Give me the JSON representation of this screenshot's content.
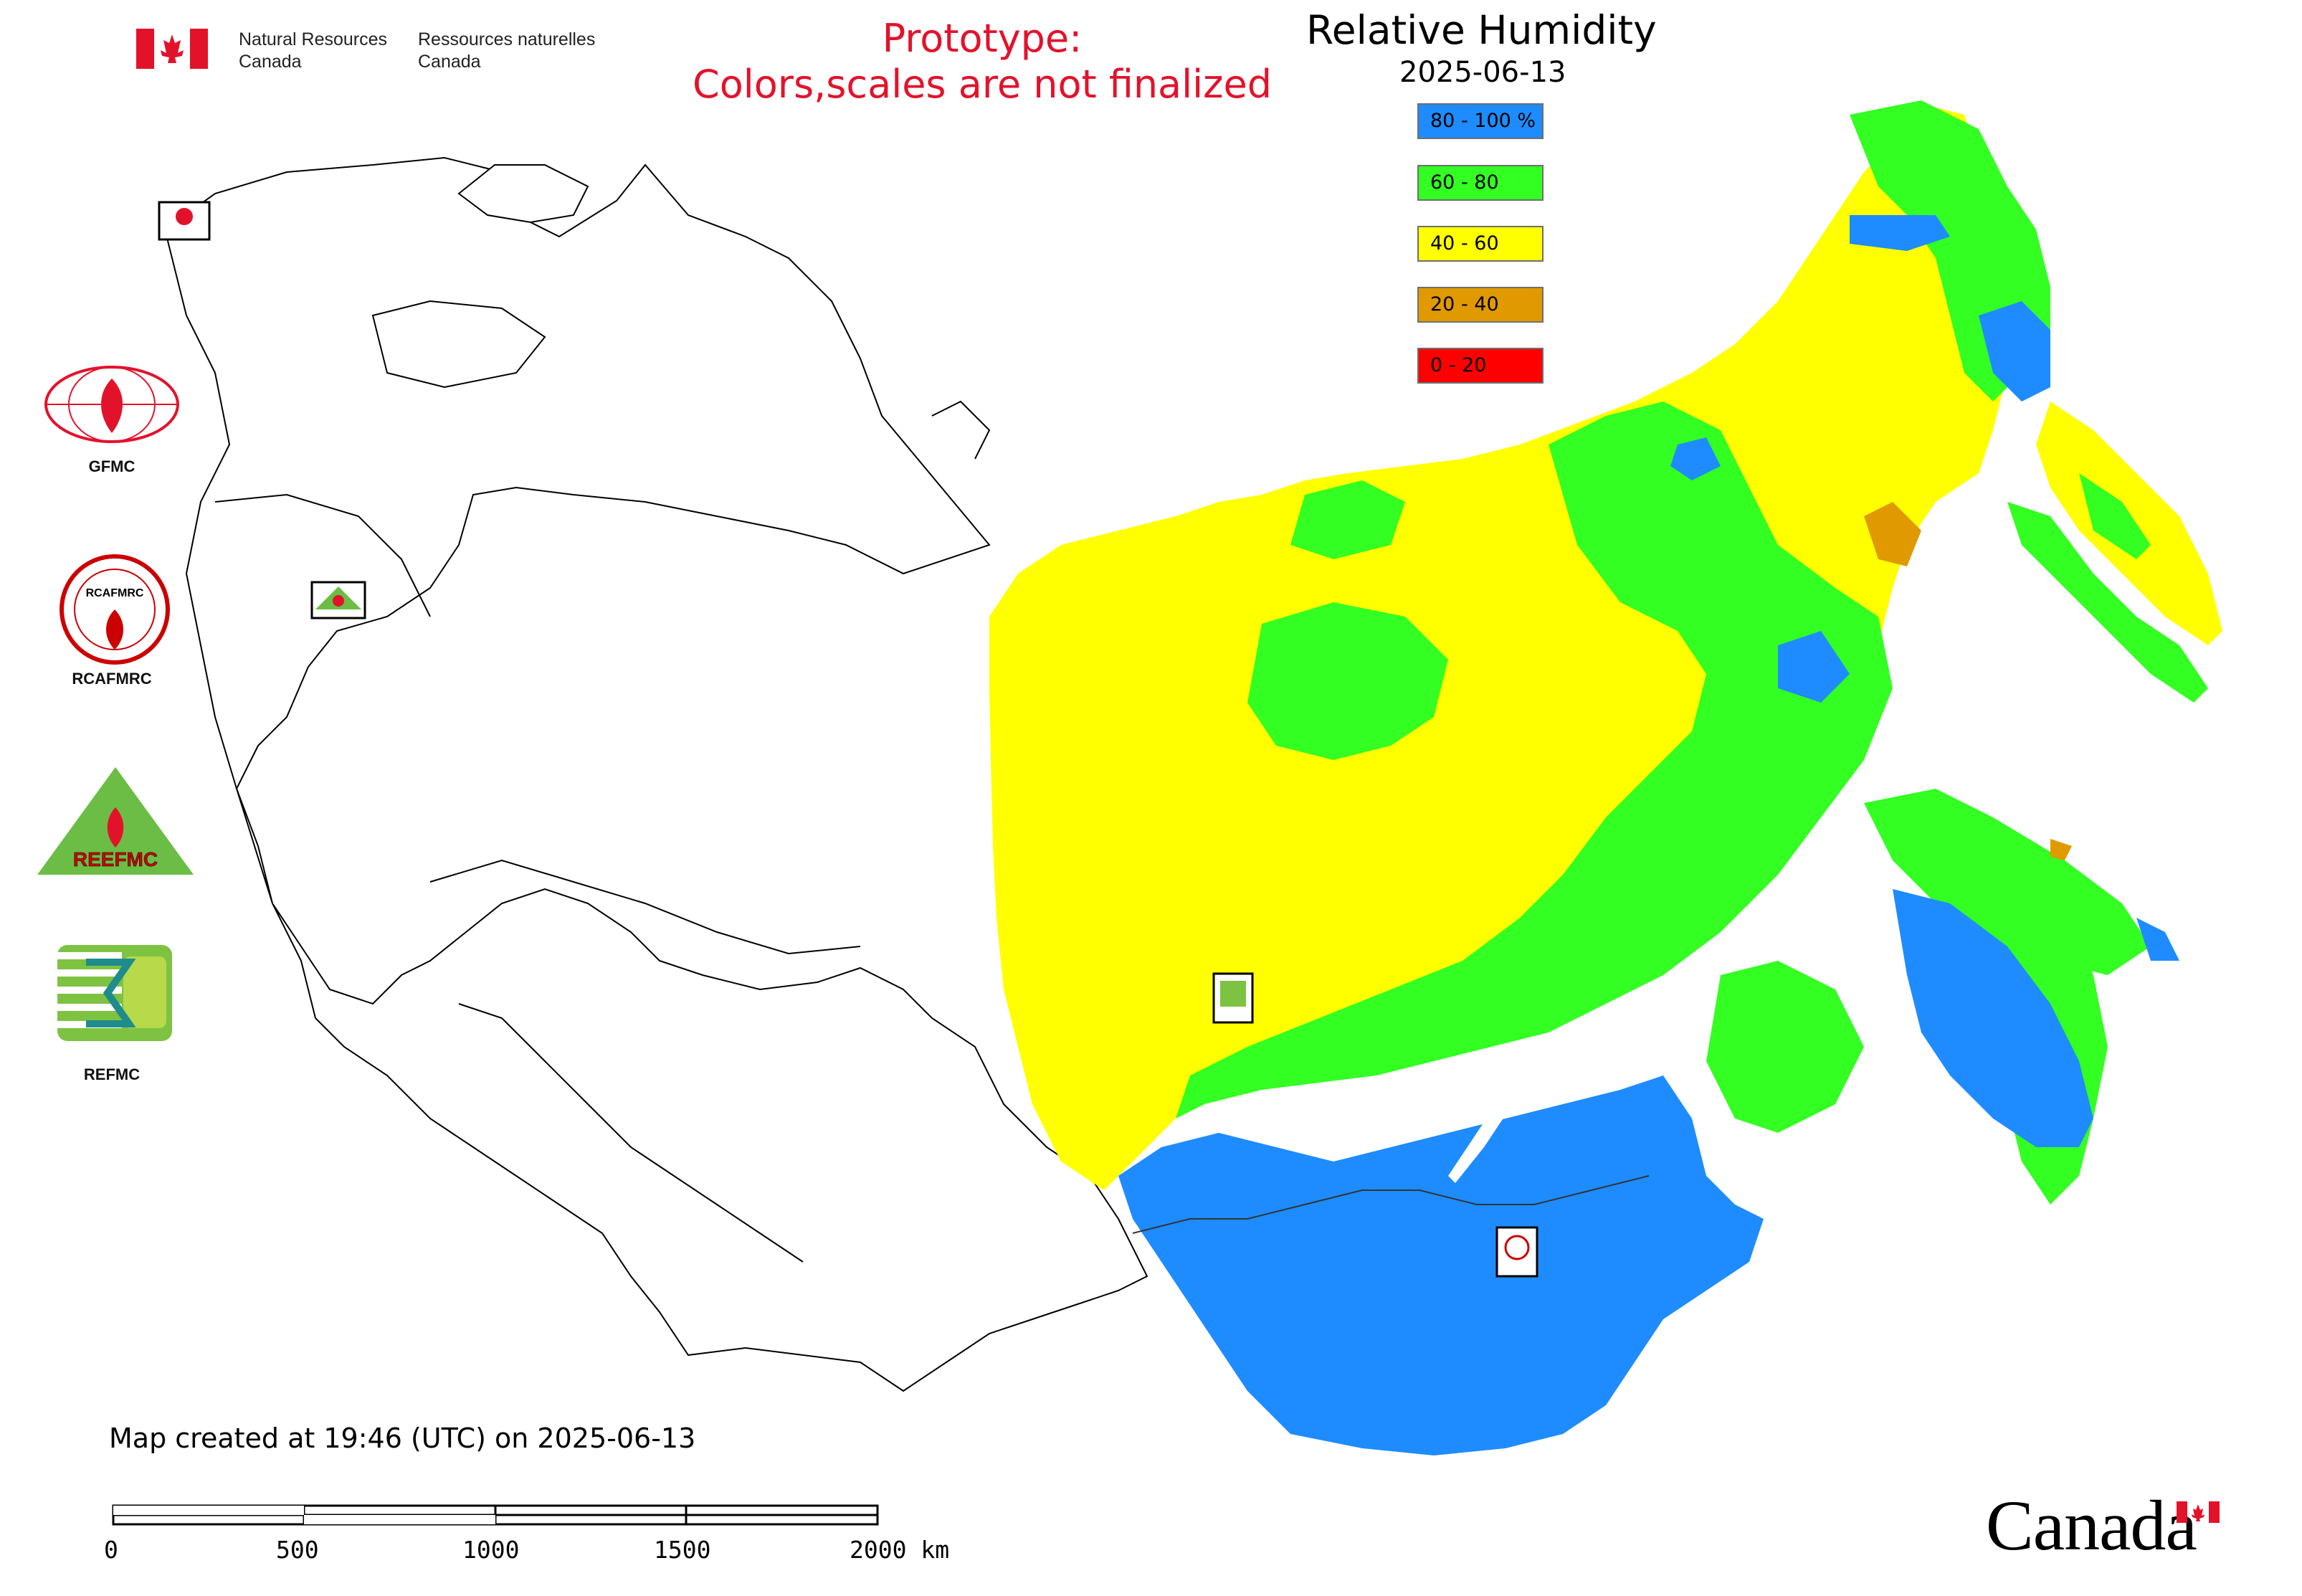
{
  "header": {
    "agency_en_line1": "Natural Resources",
    "agency_en_line2": "Canada",
    "agency_fr_line1": "Ressources naturelles",
    "agency_fr_line2": "Canada",
    "prototype_line1": "Prototype:",
    "prototype_line2": "Colors,scales are not finalized"
  },
  "map": {
    "title": "Relative Humidity",
    "date": "2025-06-13",
    "legend": [
      {
        "label": "80 - 100 %",
        "color": "#1e8cff"
      },
      {
        "label": "60 - 80",
        "color": "#33ff22"
      },
      {
        "label": "40 - 60",
        "color": "#ffff00"
      },
      {
        "label": "20 - 40",
        "color": "#e09a00"
      },
      {
        "label": "0 - 20",
        "color": "#ff0000"
      }
    ],
    "markers": [
      {
        "name": "GFMC"
      },
      {
        "name": "REEFMC"
      },
      {
        "name": "REFMC"
      },
      {
        "name": "RCAFMRC"
      }
    ]
  },
  "logos": [
    {
      "label": "GFMC",
      "icon": "gfmc-logo-icon"
    },
    {
      "label": "RCAFMRC",
      "icon": "rcafmrc-logo-icon"
    },
    {
      "label": "REFMC",
      "icon": "refmc-logo-icon"
    }
  ],
  "footer": {
    "created": "Map created at 19:46 (UTC) on 2025-06-13",
    "scale_ticks": [
      "0",
      "500",
      "1000",
      "1500",
      "2000 km"
    ],
    "wordmark": "Canada"
  }
}
